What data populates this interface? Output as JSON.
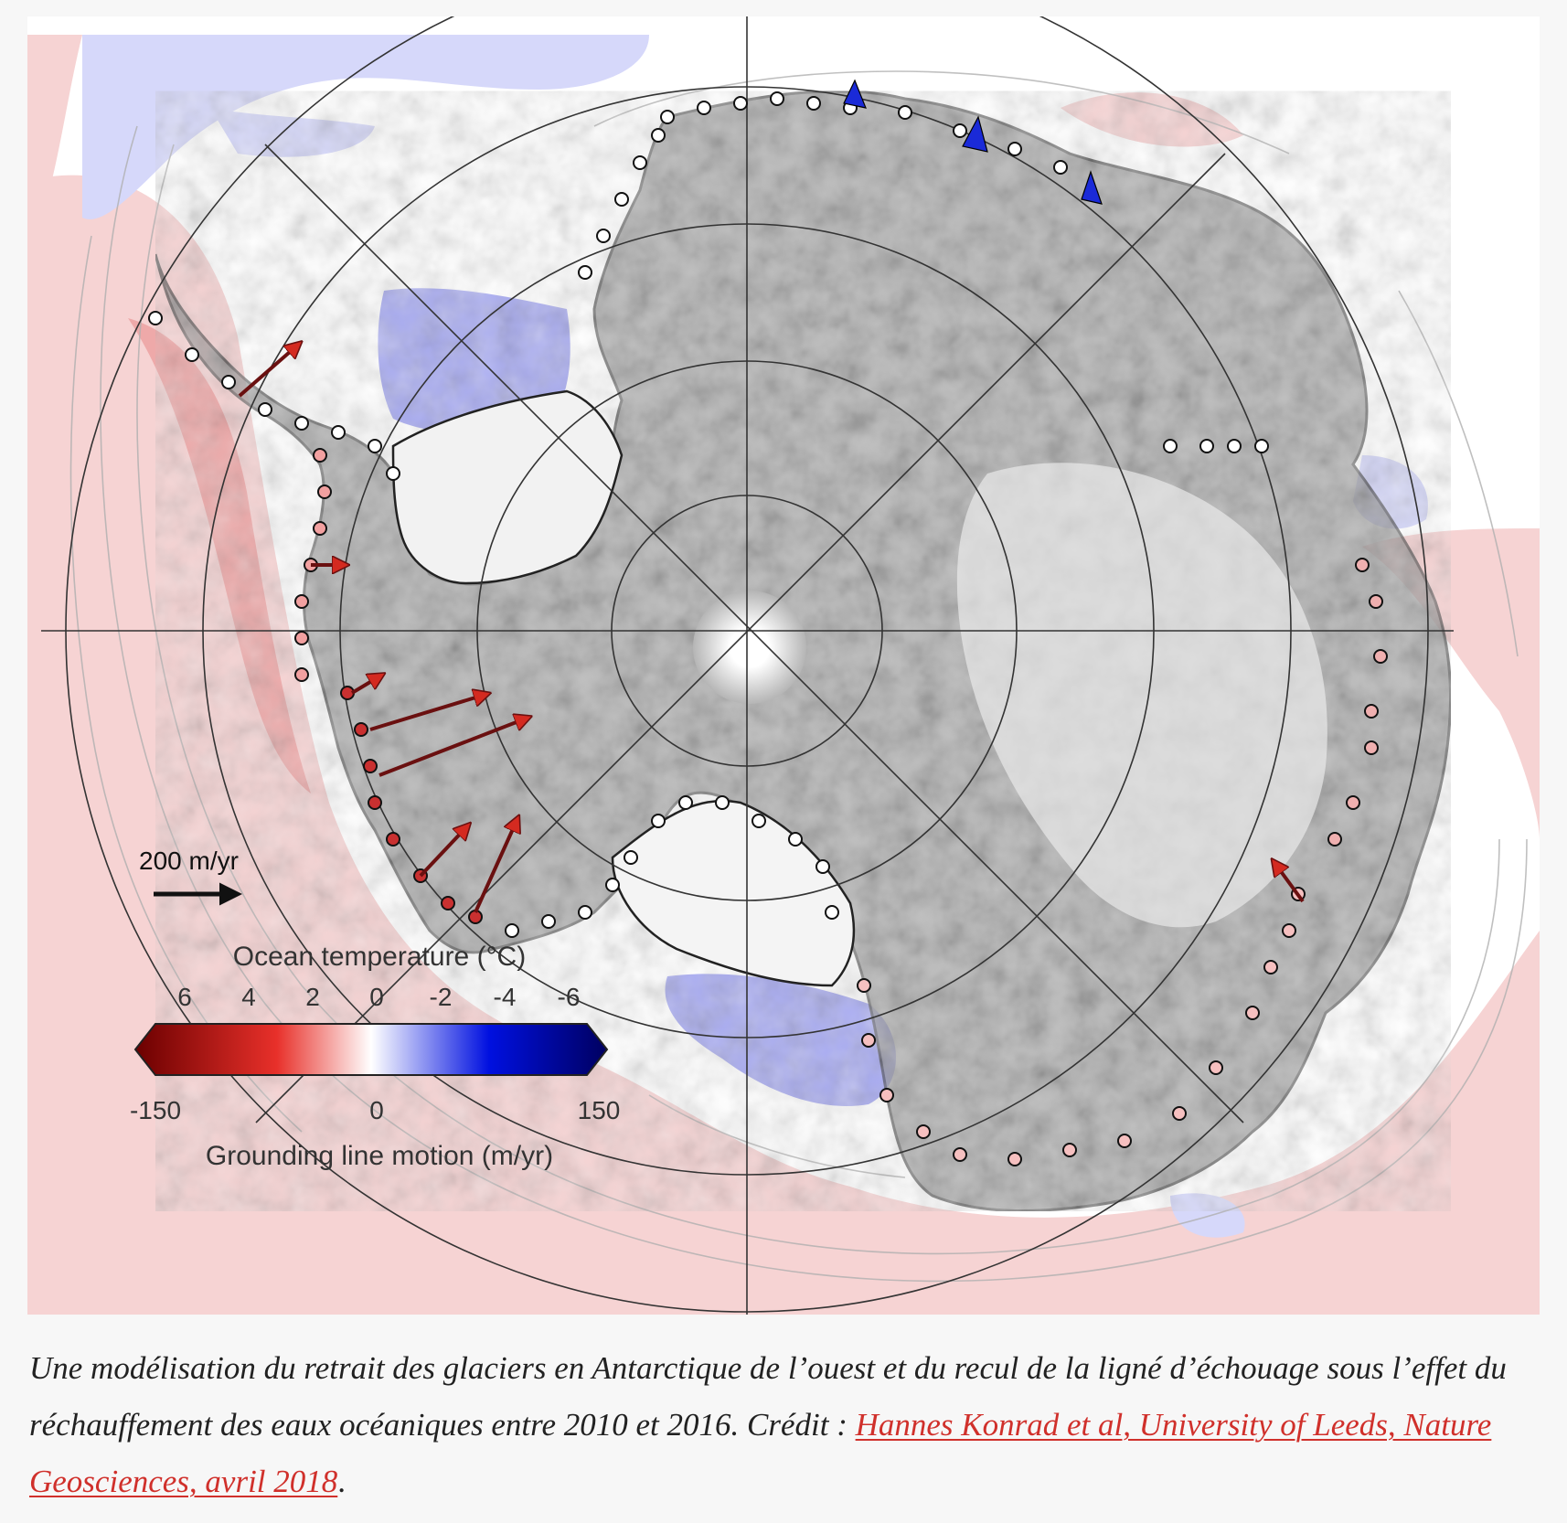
{
  "map": {
    "scale_arrow_label": "200 m/yr",
    "legend": {
      "temperature_title": "Ocean temperature (°C)",
      "temperature_ticks": [
        "6",
        "4",
        "2",
        "0",
        "-2",
        "-4",
        "-6"
      ],
      "motion_ticks": [
        "-150",
        "0",
        "150"
      ],
      "motion_title": "Grounding line motion (m/yr)",
      "colors": {
        "warm_dark": "#6b0000",
        "warm": "#e8302a",
        "neutral": "#ffffff",
        "cold": "#0010e0",
        "cold_dark": "#000060"
      }
    },
    "ocean_colors": {
      "warm_pink": "#f6d3d3",
      "warm_red": "#eea9a9",
      "cold_blue": "#d6d8fa",
      "cold_blue_strong": "#a9acf2"
    },
    "ice_color": "#8a8a8a",
    "retreat_arrow_color": "#d42a20",
    "advance_arrow_color": "#1a2ad8"
  },
  "caption": {
    "text": "Une modélisation du retrait des glaciers en Antarctique de l’ouest et du recul de la ligné d’échouage sous l’effet du réchauffement des eaux océaniques entre 2010 et 2016. Crédit : ",
    "link": "Hannes Konrad et al, University of Leeds, Nature Geosciences, avril 2018",
    "end": "."
  }
}
